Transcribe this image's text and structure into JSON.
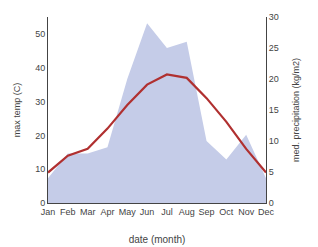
{
  "chart_data": {
    "type": "line",
    "categories": [
      "Jan",
      "Feb",
      "Mar",
      "Apr",
      "May",
      "Jun",
      "Jul",
      "Aug",
      "Sep",
      "Oct",
      "Nov",
      "Dec"
    ],
    "xlabel": "date (month)",
    "ylabel": "max temp (C)",
    "y2label": "med. precipitation (kg/m2)",
    "series": [
      {
        "type": "area",
        "color": "#c5cce8",
        "axis": "y2",
        "values": [
          4,
          8,
          8,
          9,
          20,
          29,
          25,
          26,
          10,
          7,
          11,
          4
        ]
      },
      {
        "type": "line",
        "color": "#b03030",
        "values": [
          9,
          14,
          16,
          22,
          29,
          35,
          38,
          37,
          31,
          24,
          16,
          9
        ]
      }
    ],
    "ylim": [
      0,
      55
    ],
    "yticks": [
      0,
      10,
      20,
      30,
      40,
      50
    ],
    "y2lim": [
      0,
      30
    ],
    "y2ticks": [
      0,
      5,
      10,
      15,
      20,
      25,
      30
    ],
    "grid": false
  }
}
